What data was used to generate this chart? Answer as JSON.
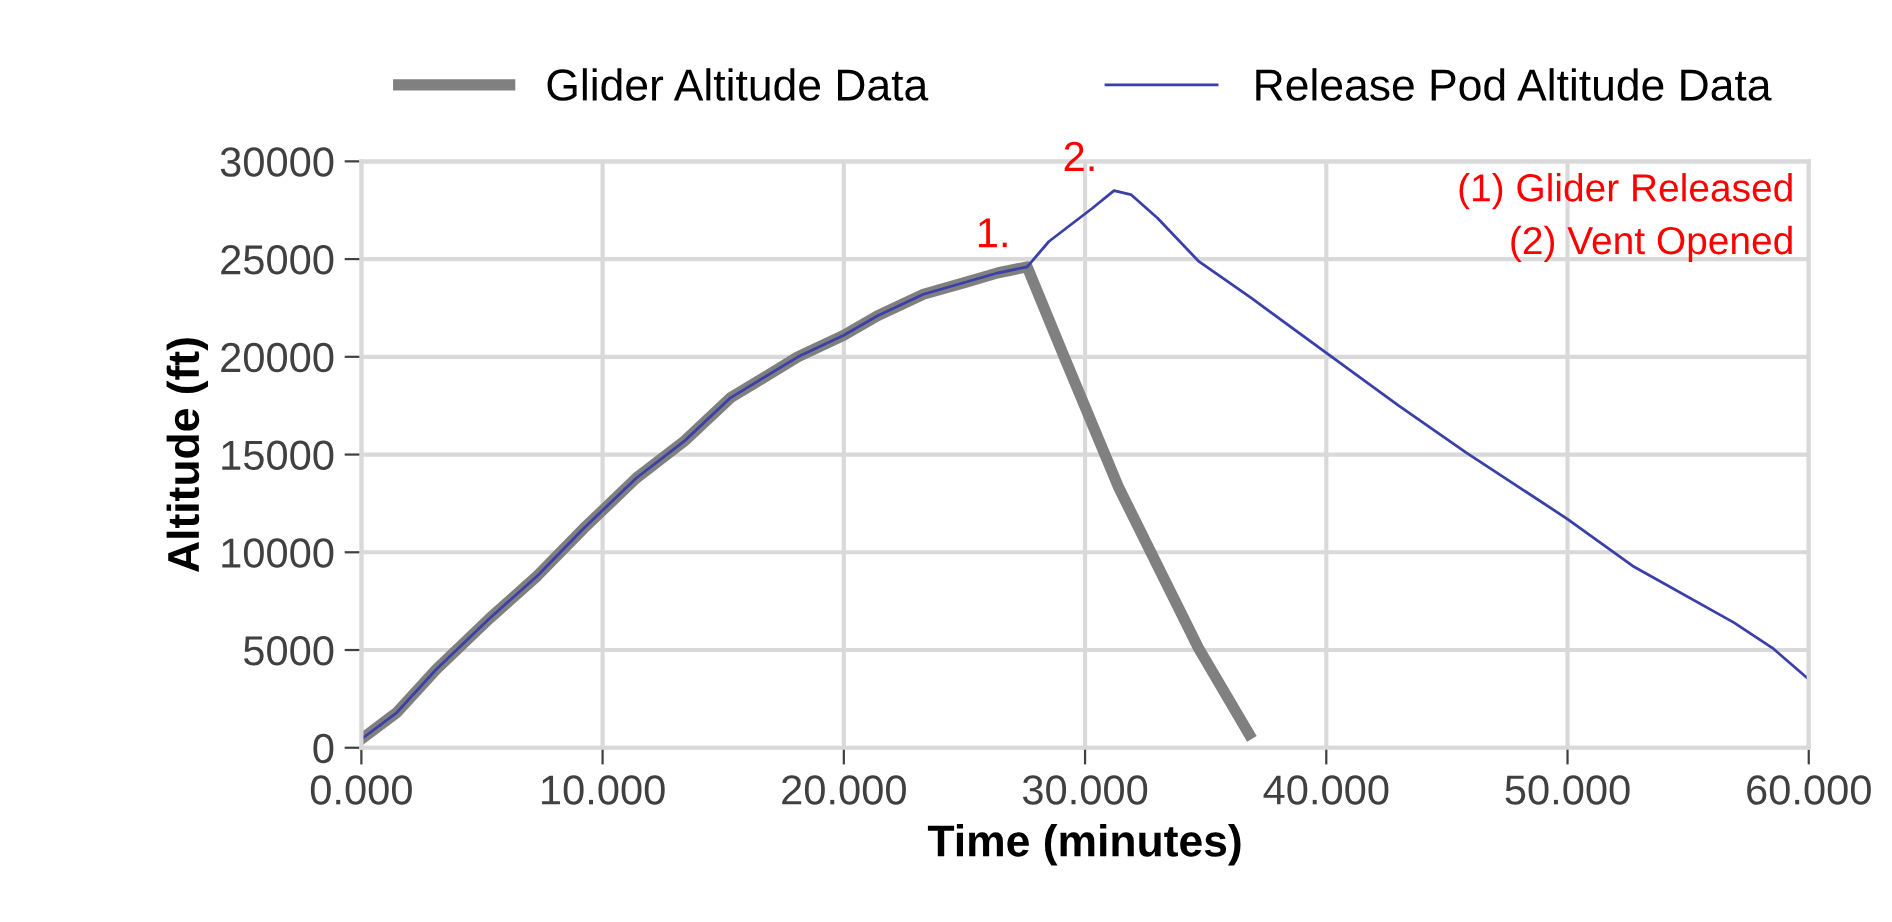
{
  "chart_data": {
    "type": "line",
    "xlabel": "Time (minutes)",
    "ylabel": "Altitude (ft)",
    "xlim": [
      0,
      60
    ],
    "xticks": [
      {
        "value": 0,
        "label": "0.000"
      },
      {
        "value": 10,
        "label": "10.000"
      },
      {
        "value": 20,
        "label": "20.000"
      },
      {
        "value": 30,
        "label": "30.000"
      },
      {
        "value": 40,
        "label": "40.000"
      },
      {
        "value": 50,
        "label": "50.000"
      },
      {
        "value": 60,
        "label": "60.000"
      }
    ],
    "ylim": [
      0,
      30000
    ],
    "yticks": [
      0,
      5000,
      10000,
      15000,
      20000,
      25000,
      30000
    ],
    "grid": true,
    "legend": "top",
    "marker": "none",
    "line_style": "solid",
    "series": [
      {
        "name": "Glider Altitude Data",
        "color": "#808080",
        "x": [
          0,
          1.47,
          3.1,
          5.3,
          7.3,
          9.2,
          11.4,
          13.4,
          15.3,
          18.1,
          20.0,
          21.4,
          23.3,
          25.0,
          26.4,
          27.6,
          29.2,
          31.4,
          34.7,
          36.8
        ],
        "values": [
          440,
          1800,
          4000,
          6600,
          8800,
          11200,
          13800,
          15700,
          17900,
          20000,
          21100,
          22100,
          23200,
          23800,
          24300,
          24600,
          19800,
          13300,
          5100,
          700
        ]
      },
      {
        "name": "Release Pod Altitude Data",
        "color": "#3a40a8",
        "x": [
          0,
          1.47,
          3.1,
          5.3,
          7.3,
          9.2,
          11.4,
          13.4,
          15.3,
          18.1,
          20.0,
          21.4,
          23.3,
          25.0,
          26.4,
          27.6,
          28.5,
          30.3,
          31.2,
          31.9,
          33.0,
          34.7,
          36.9,
          40,
          43.0,
          45.8,
          50,
          52.7,
          56.9,
          58.5,
          60
        ],
        "values": [
          440,
          1800,
          4000,
          6600,
          8800,
          11200,
          13800,
          15700,
          17900,
          20000,
          21100,
          22100,
          23200,
          23800,
          24300,
          24600,
          25900,
          27600,
          28500,
          28300,
          27100,
          24900,
          23000,
          20200,
          17500,
          15100,
          11700,
          9300,
          6400,
          5100,
          3500
        ]
      }
    ],
    "annotations": [
      {
        "text": "1.",
        "x": 27.6,
        "y": 24600
      },
      {
        "text": "2.",
        "x": 31.2,
        "y": 28500
      },
      "(1) Glider Released",
      "(2) Vent Opened"
    ]
  }
}
